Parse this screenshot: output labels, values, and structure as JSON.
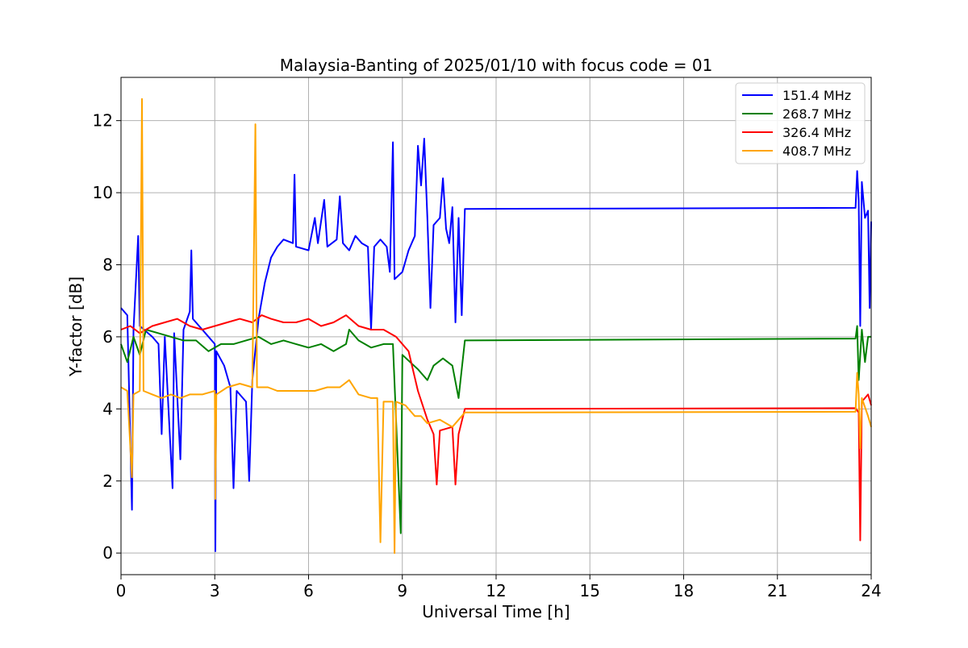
{
  "chart_data": {
    "type": "line",
    "title": "Malaysia-Banting of 2025/01/10 with focus code = 01",
    "xlabel": "Universal Time [h]",
    "ylabel": "Y-factor [dB]",
    "xlim": [
      0,
      24
    ],
    "ylim": [
      -0.6,
      13.2
    ],
    "xticks": [
      0,
      3,
      6,
      9,
      12,
      15,
      18,
      21,
      24
    ],
    "yticks": [
      0,
      2,
      4,
      6,
      8,
      10,
      12
    ],
    "grid": true,
    "legend_position": "top-right",
    "series": [
      {
        "name": "151.4 MHz",
        "color": "#0000ff",
        "points": [
          [
            0,
            6.8
          ],
          [
            0.2,
            6.6
          ],
          [
            0.35,
            1.2
          ],
          [
            0.4,
            6.2
          ],
          [
            0.55,
            8.8
          ],
          [
            0.6,
            6.3
          ],
          [
            1.0,
            6.0
          ],
          [
            1.2,
            5.8
          ],
          [
            1.3,
            3.3
          ],
          [
            1.4,
            6.0
          ],
          [
            1.65,
            1.8
          ],
          [
            1.7,
            6.1
          ],
          [
            1.9,
            2.6
          ],
          [
            2.0,
            6.2
          ],
          [
            2.2,
            6.7
          ],
          [
            2.25,
            8.4
          ],
          [
            2.3,
            6.5
          ],
          [
            2.6,
            6.2
          ],
          [
            3.0,
            5.8
          ],
          [
            3.02,
            0.05
          ],
          [
            3.05,
            5.6
          ],
          [
            3.3,
            5.2
          ],
          [
            3.5,
            4.6
          ],
          [
            3.6,
            1.8
          ],
          [
            3.7,
            4.5
          ],
          [
            4.0,
            4.2
          ],
          [
            4.1,
            2.0
          ],
          [
            4.2,
            4.8
          ],
          [
            4.4,
            6.5
          ],
          [
            4.6,
            7.5
          ],
          [
            4.8,
            8.2
          ],
          [
            5.0,
            8.5
          ],
          [
            5.2,
            8.7
          ],
          [
            5.5,
            8.6
          ],
          [
            5.55,
            10.5
          ],
          [
            5.6,
            8.5
          ],
          [
            6.0,
            8.4
          ],
          [
            6.2,
            9.3
          ],
          [
            6.3,
            8.6
          ],
          [
            6.5,
            9.8
          ],
          [
            6.6,
            8.5
          ],
          [
            6.9,
            8.7
          ],
          [
            7.0,
            9.9
          ],
          [
            7.1,
            8.6
          ],
          [
            7.3,
            8.4
          ],
          [
            7.5,
            8.8
          ],
          [
            7.7,
            8.6
          ],
          [
            7.9,
            8.5
          ],
          [
            8.0,
            6.2
          ],
          [
            8.1,
            8.5
          ],
          [
            8.3,
            8.7
          ],
          [
            8.5,
            8.5
          ],
          [
            8.6,
            7.8
          ],
          [
            8.7,
            11.4
          ],
          [
            8.75,
            7.6
          ],
          [
            9.0,
            7.8
          ],
          [
            9.2,
            8.4
          ],
          [
            9.4,
            8.8
          ],
          [
            9.5,
            11.3
          ],
          [
            9.6,
            10.2
          ],
          [
            9.7,
            11.5
          ],
          [
            9.8,
            9.3
          ],
          [
            9.9,
            6.8
          ],
          [
            10.0,
            9.1
          ],
          [
            10.2,
            9.3
          ],
          [
            10.3,
            10.4
          ],
          [
            10.4,
            9.0
          ],
          [
            10.5,
            8.6
          ],
          [
            10.6,
            9.6
          ],
          [
            10.7,
            6.4
          ],
          [
            10.8,
            9.3
          ],
          [
            10.9,
            6.6
          ],
          [
            11.0,
            9.55
          ],
          [
            23.5,
            9.58
          ],
          [
            23.55,
            10.6
          ],
          [
            23.6,
            9.8
          ],
          [
            23.65,
            6.3
          ],
          [
            23.7,
            10.3
          ],
          [
            23.8,
            9.3
          ],
          [
            23.9,
            9.5
          ],
          [
            23.95,
            6.8
          ],
          [
            24.0,
            9.2
          ]
        ]
      },
      {
        "name": "268.7 MHz",
        "color": "#008000",
        "points": [
          [
            0,
            5.8
          ],
          [
            0.2,
            5.3
          ],
          [
            0.4,
            6.0
          ],
          [
            0.6,
            5.5
          ],
          [
            0.8,
            6.2
          ],
          [
            1.2,
            6.1
          ],
          [
            1.6,
            6.0
          ],
          [
            2.0,
            5.9
          ],
          [
            2.4,
            5.9
          ],
          [
            2.8,
            5.6
          ],
          [
            3.2,
            5.8
          ],
          [
            3.6,
            5.8
          ],
          [
            4.0,
            5.9
          ],
          [
            4.4,
            6.0
          ],
          [
            4.8,
            5.8
          ],
          [
            5.2,
            5.9
          ],
          [
            5.6,
            5.8
          ],
          [
            6.0,
            5.7
          ],
          [
            6.4,
            5.8
          ],
          [
            6.8,
            5.6
          ],
          [
            7.2,
            5.8
          ],
          [
            7.3,
            6.2
          ],
          [
            7.6,
            5.9
          ],
          [
            8.0,
            5.7
          ],
          [
            8.4,
            5.8
          ],
          [
            8.7,
            5.8
          ],
          [
            8.95,
            0.55
          ],
          [
            9.0,
            5.5
          ],
          [
            9.5,
            5.1
          ],
          [
            9.8,
            4.8
          ],
          [
            10.0,
            5.2
          ],
          [
            10.3,
            5.4
          ],
          [
            10.6,
            5.2
          ],
          [
            10.8,
            4.3
          ],
          [
            11.0,
            5.9
          ],
          [
            23.5,
            5.95
          ],
          [
            23.55,
            6.3
          ],
          [
            23.6,
            4.8
          ],
          [
            23.7,
            6.2
          ],
          [
            23.8,
            5.3
          ],
          [
            23.9,
            6.0
          ],
          [
            24.0,
            6.0
          ]
        ]
      },
      {
        "name": "326.4 MHz",
        "color": "#ff0000",
        "points": [
          [
            0,
            6.2
          ],
          [
            0.3,
            6.3
          ],
          [
            0.6,
            6.1
          ],
          [
            1.0,
            6.3
          ],
          [
            1.4,
            6.4
          ],
          [
            1.8,
            6.5
          ],
          [
            2.2,
            6.3
          ],
          [
            2.6,
            6.2
          ],
          [
            3.0,
            6.3
          ],
          [
            3.4,
            6.4
          ],
          [
            3.8,
            6.5
          ],
          [
            4.2,
            6.4
          ],
          [
            4.5,
            6.6
          ],
          [
            4.8,
            6.5
          ],
          [
            5.2,
            6.4
          ],
          [
            5.6,
            6.4
          ],
          [
            6.0,
            6.5
          ],
          [
            6.4,
            6.3
          ],
          [
            6.8,
            6.4
          ],
          [
            7.2,
            6.6
          ],
          [
            7.6,
            6.3
          ],
          [
            8.0,
            6.2
          ],
          [
            8.4,
            6.2
          ],
          [
            8.8,
            6.0
          ],
          [
            9.2,
            5.6
          ],
          [
            9.5,
            4.5
          ],
          [
            9.8,
            3.7
          ],
          [
            10.0,
            3.3
          ],
          [
            10.1,
            1.9
          ],
          [
            10.2,
            3.4
          ],
          [
            10.6,
            3.5
          ],
          [
            10.7,
            1.9
          ],
          [
            10.8,
            3.3
          ],
          [
            11.0,
            4.0
          ],
          [
            23.5,
            4.02
          ],
          [
            23.6,
            3.9
          ],
          [
            23.65,
            0.35
          ],
          [
            23.7,
            4.2
          ],
          [
            23.9,
            4.4
          ],
          [
            24.0,
            4.1
          ]
        ]
      },
      {
        "name": "408.7 MHz",
        "color": "#ffa500",
        "points": [
          [
            0,
            4.6
          ],
          [
            0.2,
            4.5
          ],
          [
            0.35,
            2.1
          ],
          [
            0.4,
            4.4
          ],
          [
            0.6,
            4.5
          ],
          [
            0.67,
            12.6
          ],
          [
            0.72,
            4.5
          ],
          [
            1.0,
            4.4
          ],
          [
            1.3,
            4.3
          ],
          [
            1.6,
            4.4
          ],
          [
            1.9,
            4.3
          ],
          [
            2.2,
            4.4
          ],
          [
            2.6,
            4.4
          ],
          [
            3.0,
            4.5
          ],
          [
            3.02,
            1.5
          ],
          [
            3.05,
            4.4
          ],
          [
            3.4,
            4.6
          ],
          [
            3.8,
            4.7
          ],
          [
            4.2,
            4.6
          ],
          [
            4.3,
            11.9
          ],
          [
            4.35,
            4.6
          ],
          [
            4.7,
            4.6
          ],
          [
            5.0,
            4.5
          ],
          [
            5.4,
            4.5
          ],
          [
            5.8,
            4.5
          ],
          [
            6.2,
            4.5
          ],
          [
            6.6,
            4.6
          ],
          [
            7.0,
            4.6
          ],
          [
            7.3,
            4.8
          ],
          [
            7.6,
            4.4
          ],
          [
            8.0,
            4.3
          ],
          [
            8.2,
            4.3
          ],
          [
            8.3,
            0.3
          ],
          [
            8.4,
            4.2
          ],
          [
            8.7,
            4.2
          ],
          [
            8.75,
            0.0
          ],
          [
            8.8,
            4.2
          ],
          [
            9.1,
            4.1
          ],
          [
            9.4,
            3.8
          ],
          [
            9.6,
            3.8
          ],
          [
            9.8,
            3.6
          ],
          [
            10.2,
            3.7
          ],
          [
            10.6,
            3.5
          ],
          [
            11.0,
            3.9
          ],
          [
            23.5,
            3.92
          ],
          [
            23.55,
            5.0
          ],
          [
            23.6,
            4.4
          ],
          [
            23.65,
            2.9
          ],
          [
            23.7,
            4.3
          ],
          [
            23.9,
            3.8
          ],
          [
            24.0,
            3.5
          ]
        ]
      }
    ]
  }
}
